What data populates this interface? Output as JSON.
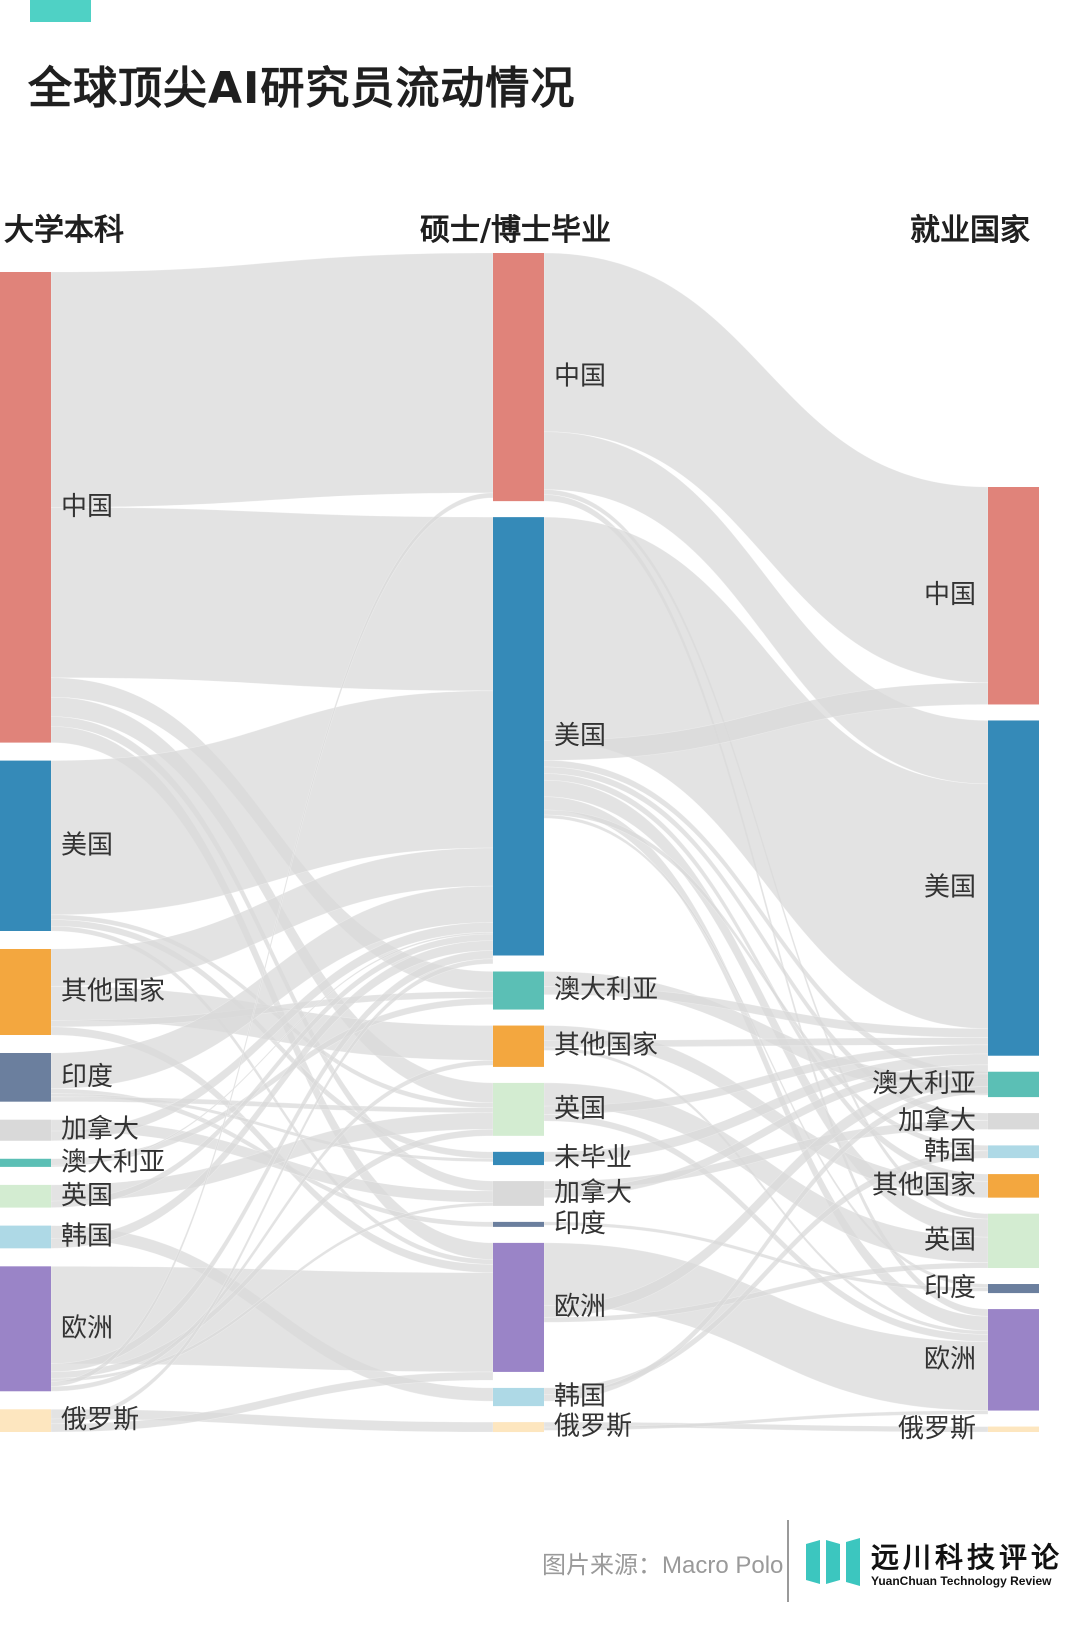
{
  "title": "全球顶尖AI研究员流动情况",
  "accent_color": "#4fd1c5",
  "columns": [
    "大学本科",
    "硕士/博士毕业",
    "就业国家"
  ],
  "footer": {
    "source": "图片来源：Macro Polo",
    "brand_name": "远川科技评论",
    "brand_subtitle": "YuanChuan Technology Review",
    "brand_color": "#3cc6bf"
  },
  "chart_data": {
    "type": "sankey",
    "title": "全球顶尖AI研究员流动情况",
    "stages": [
      "大学本科",
      "硕士/博士毕业",
      "就业国家"
    ],
    "link_color": "#d9d9d9",
    "nodes": [
      {
        "id": "u_cn",
        "stage": 0,
        "label": "中国",
        "value": 29,
        "color": "#e0837a"
      },
      {
        "id": "u_us",
        "stage": 0,
        "label": "美国",
        "value": 10.5,
        "color": "#358ab8"
      },
      {
        "id": "u_other",
        "stage": 0,
        "label": "其他国家",
        "value": 5.3,
        "color": "#f3a73f"
      },
      {
        "id": "u_in",
        "stage": 0,
        "label": "印度",
        "value": 3,
        "color": "#6b7f9e"
      },
      {
        "id": "u_ca",
        "stage": 0,
        "label": "加拿大",
        "value": 1.3,
        "color": "#d9d9d9"
      },
      {
        "id": "u_au",
        "stage": 0,
        "label": "澳大利亚",
        "value": 0.5,
        "color": "#5bbfb5"
      },
      {
        "id": "u_uk",
        "stage": 0,
        "label": "英国",
        "value": 1.4,
        "color": "#d3ecd1"
      },
      {
        "id": "u_kr",
        "stage": 0,
        "label": "韩国",
        "value": 1.4,
        "color": "#aed9e6"
      },
      {
        "id": "u_eu",
        "stage": 0,
        "label": "欧洲",
        "value": 7.7,
        "color": "#9a84c7"
      },
      {
        "id": "u_ru",
        "stage": 0,
        "label": "俄罗斯",
        "value": 1.4,
        "color": "#fde6bf"
      },
      {
        "id": "g_cn",
        "stage": 1,
        "label": "中国",
        "value": 15,
        "color": "#e0837a"
      },
      {
        "id": "g_us",
        "stage": 1,
        "label": "美国",
        "value": 26.5,
        "color": "#358ab8"
      },
      {
        "id": "g_au",
        "stage": 1,
        "label": "澳大利亚",
        "value": 2.3,
        "color": "#5bbfb5"
      },
      {
        "id": "g_other",
        "stage": 1,
        "label": "其他国家",
        "value": 2.5,
        "color": "#f3a73f"
      },
      {
        "id": "g_uk",
        "stage": 1,
        "label": "英国",
        "value": 3.2,
        "color": "#d3ecd1"
      },
      {
        "id": "g_none",
        "stage": 1,
        "label": "未毕业",
        "value": 0.8,
        "color": "#358ab8"
      },
      {
        "id": "g_ca",
        "stage": 1,
        "label": "加拿大",
        "value": 1.5,
        "color": "#d9d9d9"
      },
      {
        "id": "g_in",
        "stage": 1,
        "label": "印度",
        "value": 0.3,
        "color": "#6b7f9e"
      },
      {
        "id": "g_eu",
        "stage": 1,
        "label": "欧洲",
        "value": 7.8,
        "color": "#9a84c7"
      },
      {
        "id": "g_kr",
        "stage": 1,
        "label": "韩国",
        "value": 1.1,
        "color": "#aed9e6"
      },
      {
        "id": "g_ru",
        "stage": 1,
        "label": "俄罗斯",
        "value": 0.6,
        "color": "#fde6bf"
      },
      {
        "id": "j_cn",
        "stage": 2,
        "label": "中国",
        "value": 12,
        "color": "#e0837a"
      },
      {
        "id": "j_us",
        "stage": 2,
        "label": "美国",
        "value": 18.5,
        "color": "#358ab8"
      },
      {
        "id": "j_au",
        "stage": 2,
        "label": "澳大利亚",
        "value": 1.4,
        "color": "#5bbfb5"
      },
      {
        "id": "j_ca",
        "stage": 2,
        "label": "加拿大",
        "value": 0.9,
        "color": "#d9d9d9"
      },
      {
        "id": "j_kr",
        "stage": 2,
        "label": "韩国",
        "value": 0.7,
        "color": "#aed9e6"
      },
      {
        "id": "j_other",
        "stage": 2,
        "label": "其他国家",
        "value": 1.3,
        "color": "#f3a73f"
      },
      {
        "id": "j_uk",
        "stage": 2,
        "label": "英国",
        "value": 3,
        "color": "#d3ecd1"
      },
      {
        "id": "j_in",
        "stage": 2,
        "label": "印度",
        "value": 0.5,
        "color": "#6b7f9e"
      },
      {
        "id": "j_eu",
        "stage": 2,
        "label": "欧洲",
        "value": 5.6,
        "color": "#9a84c7"
      },
      {
        "id": "j_ru",
        "stage": 2,
        "label": "俄罗斯",
        "value": 0.3,
        "color": "#fde6bf"
      }
    ],
    "links": [
      {
        "source": "u_cn",
        "target": "g_cn",
        "value": 14.5
      },
      {
        "source": "u_cn",
        "target": "g_us",
        "value": 10.5
      },
      {
        "source": "u_cn",
        "target": "g_au",
        "value": 1.2
      },
      {
        "source": "u_cn",
        "target": "g_uk",
        "value": 1.2
      },
      {
        "source": "u_cn",
        "target": "g_ca",
        "value": 0.6
      },
      {
        "source": "u_cn",
        "target": "g_eu",
        "value": 1
      },
      {
        "source": "u_us",
        "target": "g_us",
        "value": 9.5
      },
      {
        "source": "u_us",
        "target": "g_uk",
        "value": 0.3
      },
      {
        "source": "u_us",
        "target": "g_none",
        "value": 0.4
      },
      {
        "source": "u_us",
        "target": "g_eu",
        "value": 0.3
      },
      {
        "source": "u_other",
        "target": "g_us",
        "value": 2.3
      },
      {
        "source": "u_other",
        "target": "g_other",
        "value": 2.1
      },
      {
        "source": "u_other",
        "target": "g_au",
        "value": 0.4
      },
      {
        "source": "u_other",
        "target": "g_eu",
        "value": 0.5
      },
      {
        "source": "u_in",
        "target": "g_us",
        "value": 2.2
      },
      {
        "source": "u_in",
        "target": "g_in",
        "value": 0.3
      },
      {
        "source": "u_in",
        "target": "g_none",
        "value": 0.2
      },
      {
        "source": "u_in",
        "target": "g_uk",
        "value": 0.3
      },
      {
        "source": "u_ca",
        "target": "g_ca",
        "value": 0.7
      },
      {
        "source": "u_ca",
        "target": "g_us",
        "value": 0.6
      },
      {
        "source": "u_au",
        "target": "g_au",
        "value": 0.4
      },
      {
        "source": "u_au",
        "target": "g_us",
        "value": 0.1
      },
      {
        "source": "u_uk",
        "target": "g_uk",
        "value": 1
      },
      {
        "source": "u_uk",
        "target": "g_us",
        "value": 0.4
      },
      {
        "source": "u_kr",
        "target": "g_kr",
        "value": 0.8
      },
      {
        "source": "u_kr",
        "target": "g_us",
        "value": 0.6
      },
      {
        "source": "u_eu",
        "target": "g_eu",
        "value": 6
      },
      {
        "source": "u_eu",
        "target": "g_us",
        "value": 0.5
      },
      {
        "source": "u_eu",
        "target": "g_uk",
        "value": 0.4
      },
      {
        "source": "u_eu",
        "target": "g_ca",
        "value": 0.2
      },
      {
        "source": "u_eu",
        "target": "g_cn",
        "value": 0.3
      },
      {
        "source": "u_eu",
        "target": "g_other",
        "value": 0.3
      },
      {
        "source": "u_ru",
        "target": "g_ru",
        "value": 0.6
      },
      {
        "source": "u_ru",
        "target": "g_us",
        "value": 0.3
      },
      {
        "source": "u_ru",
        "target": "g_eu",
        "value": 0.5
      },
      {
        "source": "g_cn",
        "target": "j_cn",
        "value": 10.8
      },
      {
        "source": "g_cn",
        "target": "j_us",
        "value": 3.5
      },
      {
        "source": "g_cn",
        "target": "j_uk",
        "value": 0.3
      },
      {
        "source": "g_cn",
        "target": "j_eu",
        "value": 0.4
      },
      {
        "source": "g_us",
        "target": "j_us",
        "value": 13.5
      },
      {
        "source": "g_us",
        "target": "j_cn",
        "value": 1.2
      },
      {
        "source": "g_us",
        "target": "j_au",
        "value": 0.4
      },
      {
        "source": "g_us",
        "target": "j_ca",
        "value": 0.4
      },
      {
        "source": "g_us",
        "target": "j_other",
        "value": 0.4
      },
      {
        "source": "g_us",
        "target": "j_uk",
        "value": 1
      },
      {
        "source": "g_us",
        "target": "j_eu",
        "value": 0.8
      },
      {
        "source": "g_us",
        "target": "j_kr",
        "value": 0.3
      },
      {
        "source": "g_us",
        "target": "j_in",
        "value": 0.2
      },
      {
        "source": "g_au",
        "target": "j_au",
        "value": 0.9
      },
      {
        "source": "g_au",
        "target": "j_us",
        "value": 0.5
      },
      {
        "source": "g_other",
        "target": "j_other",
        "value": 0.9
      },
      {
        "source": "g_other",
        "target": "j_us",
        "value": 0.4
      },
      {
        "source": "g_other",
        "target": "j_eu",
        "value": 0.2
      },
      {
        "source": "g_uk",
        "target": "j_uk",
        "value": 1.4
      },
      {
        "source": "g_uk",
        "target": "j_us",
        "value": 0.5
      },
      {
        "source": "g_uk",
        "target": "j_eu",
        "value": 0.4
      },
      {
        "source": "g_none",
        "target": "j_us",
        "value": 0.6
      },
      {
        "source": "g_ca",
        "target": "j_ca",
        "value": 0.5
      },
      {
        "source": "g_ca",
        "target": "j_us",
        "value": 0.5
      },
      {
        "source": "g_in",
        "target": "j_in",
        "value": 0.2
      },
      {
        "source": "g_eu",
        "target": "j_eu",
        "value": 3.8
      },
      {
        "source": "g_eu",
        "target": "j_us",
        "value": 0.7
      },
      {
        "source": "g_eu",
        "target": "j_uk",
        "value": 0.3
      },
      {
        "source": "g_kr",
        "target": "j_kr",
        "value": 0.4
      },
      {
        "source": "g_kr",
        "target": "j_us",
        "value": 0.4
      },
      {
        "source": "g_ru",
        "target": "j_ru",
        "value": 0.3
      },
      {
        "source": "g_ru",
        "target": "j_eu",
        "value": 0.2
      }
    ]
  }
}
